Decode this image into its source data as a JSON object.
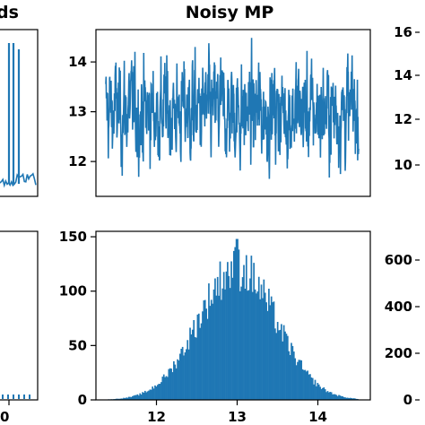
{
  "colors": {
    "series": "#1f77b4",
    "axes": "#000000",
    "background": "#ffffff"
  },
  "titles": {
    "left_partial": "ds",
    "center": "Noisy MP"
  },
  "chart_data": [
    {
      "panel": "top-center",
      "type": "line",
      "title": "Noisy MP",
      "xlabel": "",
      "ylabel": "",
      "ylim": [
        11.3,
        14.65
      ],
      "yticks": [
        12,
        13,
        14
      ],
      "ytick_labels": [
        "12",
        "13",
        "14"
      ],
      "n_points": 1000,
      "mean": 13.0,
      "min_approx": 11.5,
      "max_approx": 14.5,
      "grid": false
    },
    {
      "panel": "bottom-center",
      "type": "bar",
      "subtype": "histogram",
      "xlabel": "",
      "ylabel": "",
      "xlim": [
        11.25,
        14.65
      ],
      "ylim": [
        0,
        155
      ],
      "xticks": [
        12,
        13,
        14
      ],
      "xtick_labels": [
        "12",
        "13",
        "14"
      ],
      "yticks": [
        0,
        50,
        100,
        150
      ],
      "ytick_labels": [
        "0",
        "50",
        "100",
        "150"
      ],
      "bin_range": [
        11.4,
        14.5
      ],
      "peak_value": 148,
      "peak_x": 13.0,
      "grid": false
    },
    {
      "panel": "top-left-partial",
      "type": "line",
      "title": "ds",
      "xlabel": "",
      "ylabel": ""
    },
    {
      "panel": "bottom-left-partial",
      "type": "bar",
      "subtype": "histogram",
      "xtick_labels": [
        "0"
      ]
    },
    {
      "panel": "top-right-partial",
      "type": "line",
      "yticks": [
        10,
        12,
        14,
        16
      ],
      "ytick_labels": [
        "10",
        "12",
        "14",
        "16"
      ]
    },
    {
      "panel": "bottom-right-partial",
      "type": "bar",
      "subtype": "histogram",
      "yticks": [
        0,
        200,
        400,
        600
      ],
      "ytick_labels": [
        "0",
        "200",
        "400",
        "600"
      ]
    }
  ]
}
